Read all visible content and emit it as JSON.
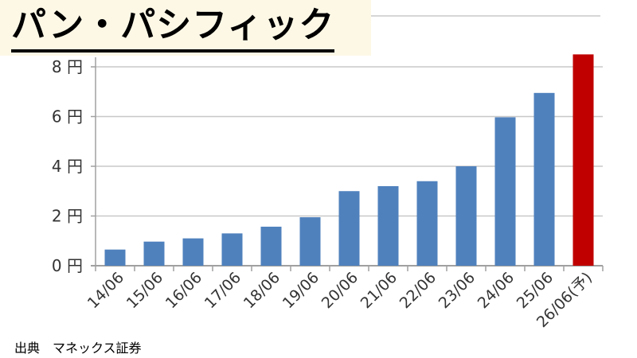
{
  "title": "パン・パシフィック",
  "source": "出典　マネックス証券",
  "colors": {
    "bar": "#4f81bd",
    "highlight": "#c00000",
    "grid": "#c8c8c8",
    "axis": "#a0a0a0",
    "title_bg": "#fdf8e6"
  },
  "chart_data": {
    "type": "bar",
    "categories": [
      "14/06",
      "15/06",
      "16/06",
      "17/06",
      "18/06",
      "19/06",
      "20/06",
      "21/06",
      "22/06",
      "23/06",
      "24/06",
      "25/06",
      "26/06(予)"
    ],
    "values": [
      0.65,
      0.97,
      1.1,
      1.3,
      1.57,
      1.95,
      3.0,
      3.2,
      3.4,
      4.0,
      5.97,
      6.95,
      8.5
    ],
    "highlight_index": 12,
    "y_ticks": [
      "0 円",
      "2 円",
      "4 円",
      "6 円",
      "8 円"
    ],
    "ylim": [
      0,
      8.5
    ],
    "grid": true,
    "xlabel": "",
    "ylabel": ""
  }
}
